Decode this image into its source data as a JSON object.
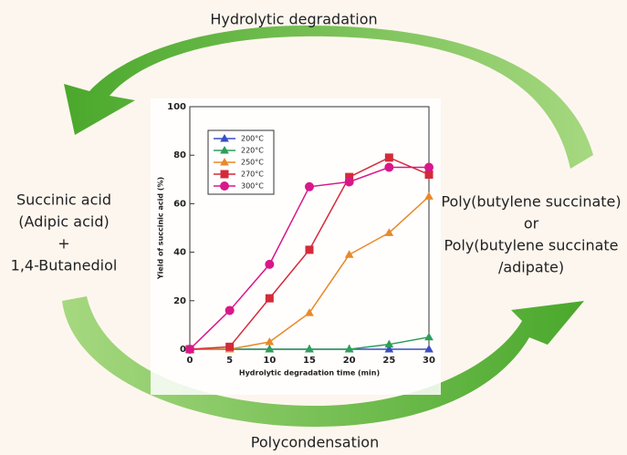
{
  "diagram": {
    "top_label": "Hydrolytic degradation",
    "bottom_label": "Polycondensation",
    "reactants": [
      "Succinic acid",
      "(Adipic acid)",
      "+",
      "1,4-Butanediol"
    ],
    "products": [
      "Poly(butylene succinate)",
      "or",
      "Poly(butylene succinate",
      "/adipate)"
    ]
  },
  "chart_data": {
    "type": "line",
    "x_label": "Hydrolytic degradation time (min)",
    "y_label": "Yield of succinic acid (%)",
    "x": [
      0,
      5,
      10,
      15,
      20,
      25,
      30
    ],
    "series": [
      {
        "name": "200°C",
        "color": "#3a4fc0",
        "marker": "triangle",
        "values": [
          0,
          0,
          0,
          0,
          0,
          0,
          0
        ]
      },
      {
        "name": "220°C",
        "color": "#2e9e5a",
        "marker": "triangle",
        "values": [
          0,
          0,
          0,
          0,
          0,
          2,
          5
        ]
      },
      {
        "name": "250°C",
        "color": "#e8892a",
        "marker": "triangle",
        "values": [
          0,
          0,
          3,
          15,
          39,
          48,
          63
        ]
      },
      {
        "name": "270°C",
        "color": "#d42a3a",
        "marker": "square",
        "values": [
          0,
          1,
          21,
          41,
          71,
          79,
          72
        ]
      },
      {
        "name": "300°C",
        "color": "#d8188a",
        "marker": "circle",
        "values": [
          0,
          16,
          35,
          67,
          69,
          75,
          75
        ]
      }
    ],
    "xlim": [
      0,
      30
    ],
    "xticks": [
      0,
      5,
      10,
      15,
      20,
      25,
      30
    ],
    "ylim": [
      0,
      100
    ],
    "yticks": [
      0,
      20,
      40,
      60,
      80,
      100
    ]
  }
}
